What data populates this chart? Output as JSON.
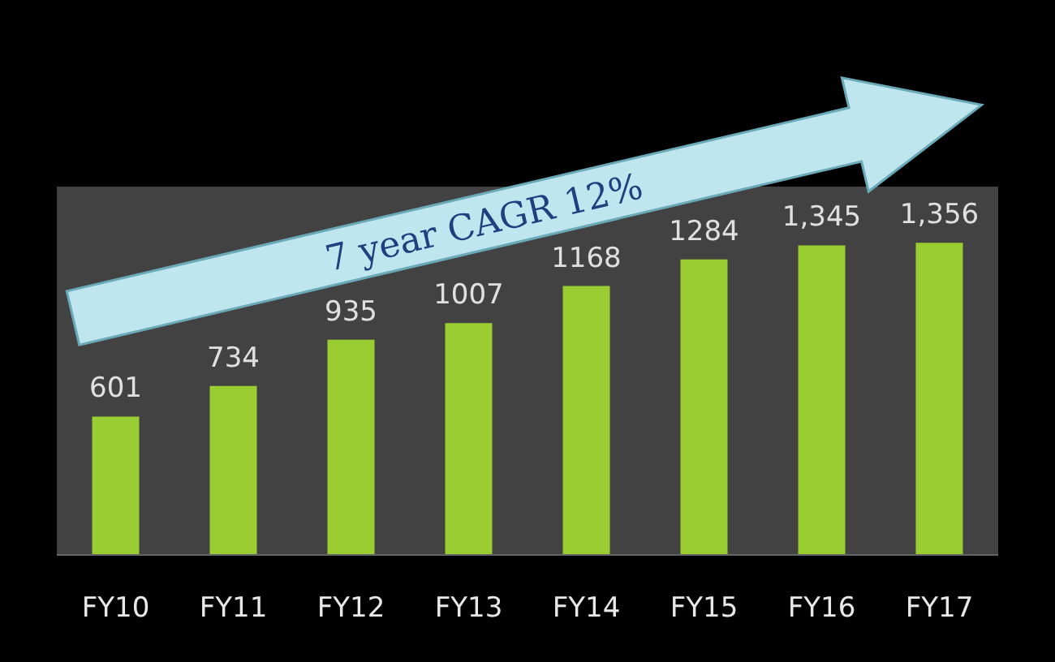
{
  "chart_data": {
    "type": "bar",
    "categories": [
      "FY10",
      "FY11",
      "FY12",
      "FY13",
      "FY14",
      "FY15",
      "FY16",
      "FY17"
    ],
    "values": [
      601,
      734,
      935,
      1007,
      1168,
      1284,
      1345,
      1356
    ],
    "value_labels": [
      "601",
      "734",
      "935",
      "1007",
      "1168",
      "1284",
      "1,345",
      "1,356"
    ],
    "color": "#9acd32",
    "annotations": [
      "7 year CAGR 12%"
    ]
  }
}
